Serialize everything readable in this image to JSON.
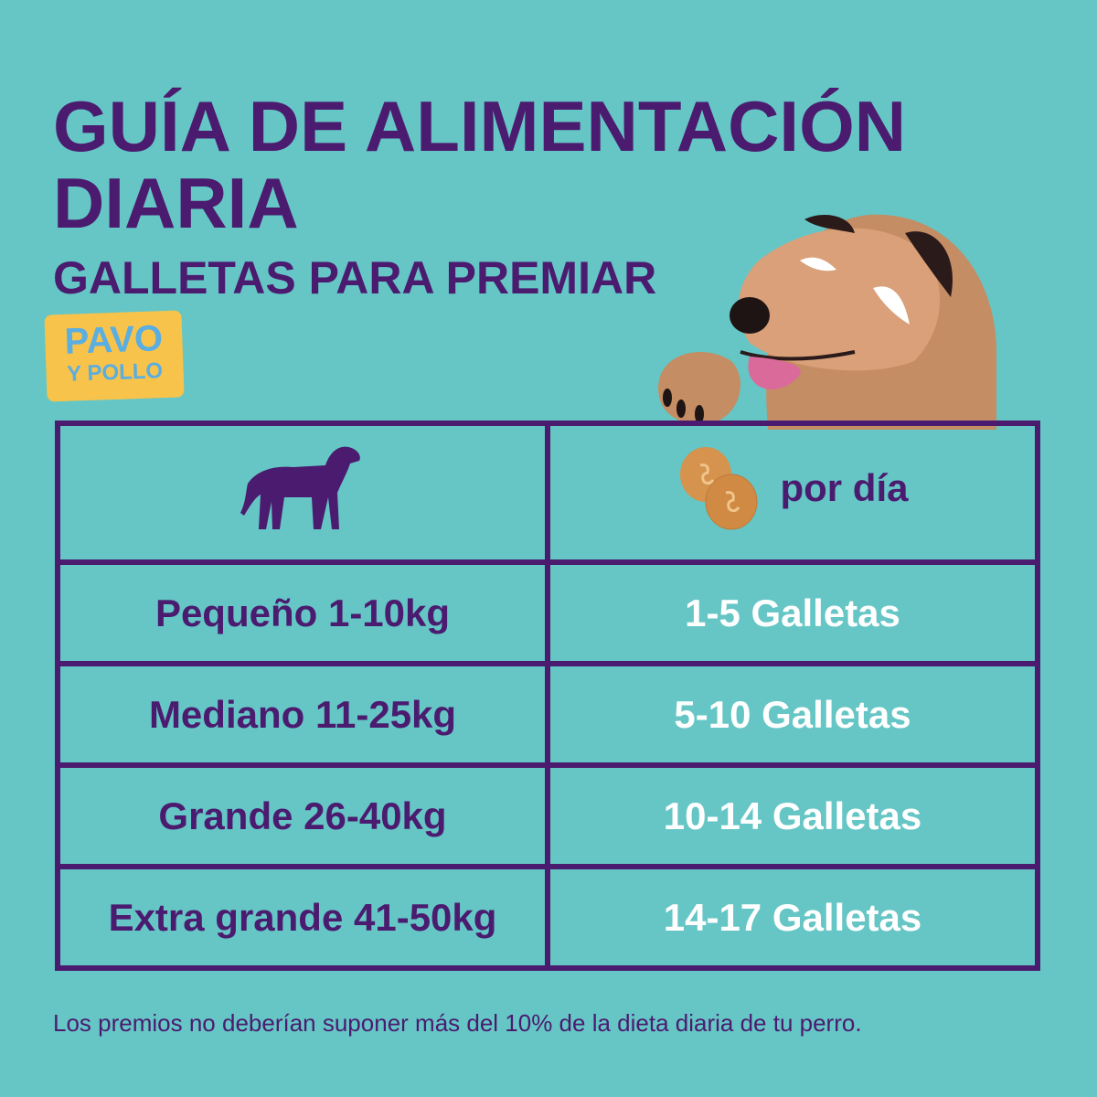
{
  "title": "GUÍA DE ALIMENTACIÓN DIARIA",
  "subtitle": "GALLETAS PARA PREMIAR",
  "badge": {
    "line1": "PAVO",
    "line2": "Y POLLO"
  },
  "colors": {
    "background": "#65c6c5",
    "primary": "#4b1b6f",
    "badge": "#f8c34a",
    "badge_text": "#5aaee2"
  },
  "table": {
    "header": {
      "dog_icon": "dog-silhouette-icon",
      "cookie_icon": "cookies-icon",
      "per_day": "por día"
    },
    "rows": [
      {
        "size": "Pequeño 1-10kg",
        "amount": "1-5 Galletas"
      },
      {
        "size": "Mediano 11-25kg",
        "amount": "5-10 Galletas"
      },
      {
        "size": "Grande 26-40kg",
        "amount": "10-14 Galletas"
      },
      {
        "size": "Extra grande 41-50kg",
        "amount": "14-17 Galletas"
      }
    ]
  },
  "footer": "Los premios no deberían suponer más del 10% de la dieta diaria de tu perro."
}
